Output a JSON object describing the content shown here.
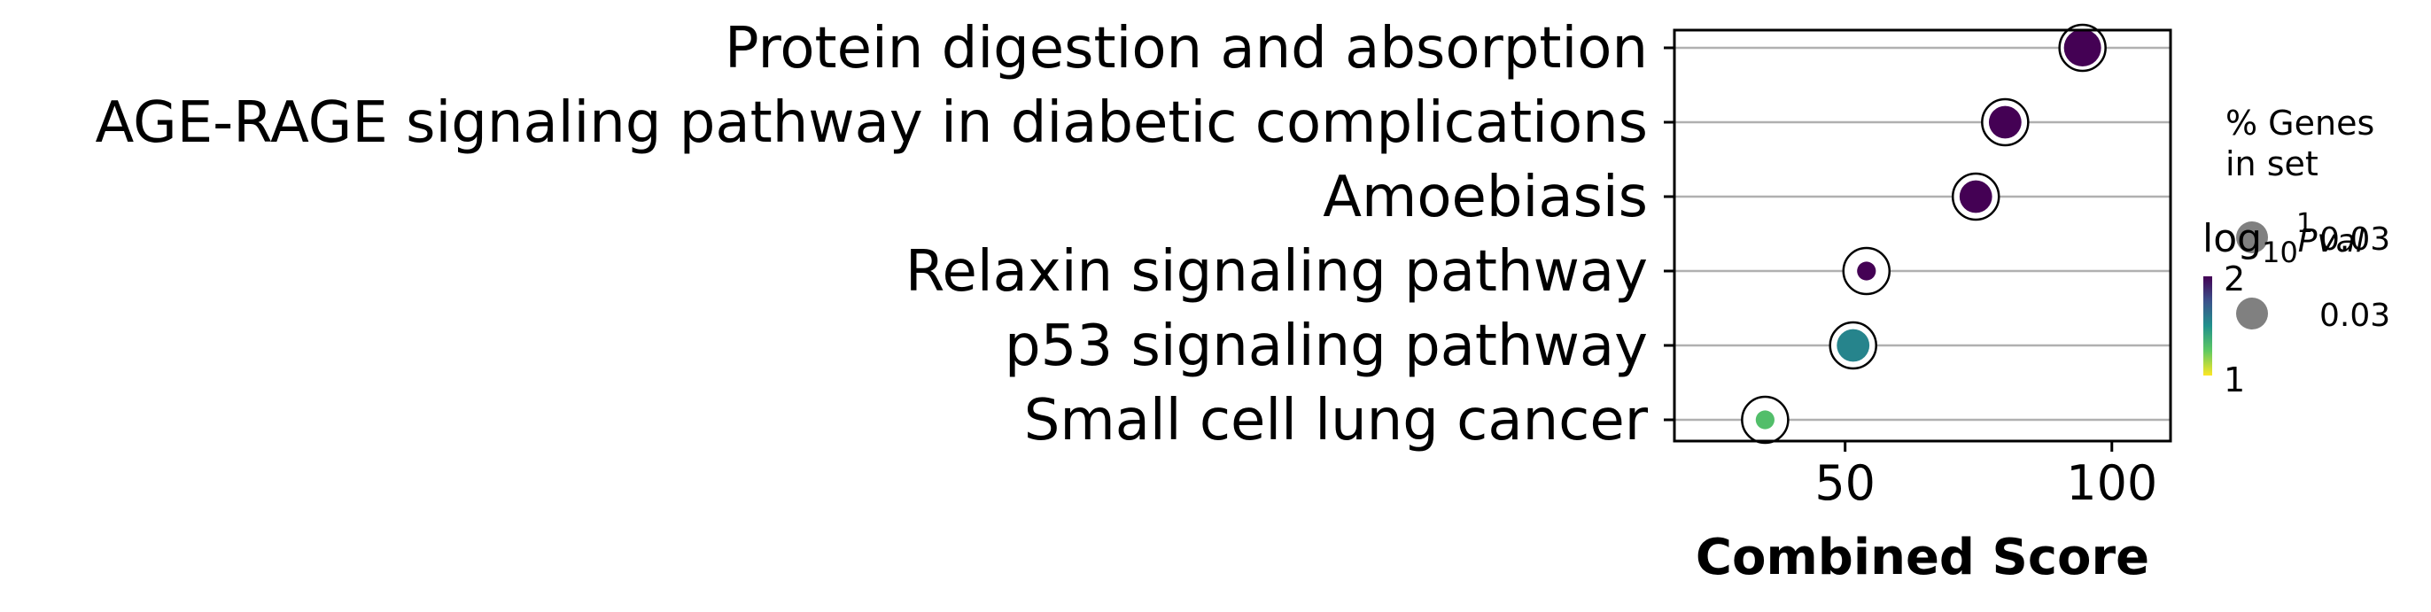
{
  "chart_data": {
    "type": "scatter",
    "xlabel": "Combined Score",
    "xlim": [
      18,
      111
    ],
    "xticks": [
      50,
      100
    ],
    "categories": [
      "Protein digestion and absorption",
      "AGE-RAGE signaling pathway in diabetic complications",
      "Amoebiasis",
      "Relaxin signaling pathway",
      "p53 signaling pathway",
      "Small cell lung cancer"
    ],
    "points": [
      {
        "term": "Protein digestion and absorption",
        "score": 94.5,
        "neg_log10_pval": 2.0,
        "pct_genes": 0.032
      },
      {
        "term": "AGE-RAGE signaling pathway in diabetic complications",
        "score": 80.0,
        "neg_log10_pval": 2.0,
        "pct_genes": 0.031
      },
      {
        "term": "Amoebiasis",
        "score": 74.5,
        "neg_log10_pval": 2.0,
        "pct_genes": 0.031
      },
      {
        "term": "Relaxin signaling pathway",
        "score": 54.0,
        "neg_log10_pval": 2.0,
        "pct_genes": 0.028
      },
      {
        "term": "p53 signaling pathway",
        "score": 51.5,
        "neg_log10_pval": 1.55,
        "pct_genes": 0.031
      },
      {
        "term": "Small cell lung cancer",
        "score": 35.0,
        "neg_log10_pval": 1.3,
        "pct_genes": 0.028
      }
    ],
    "colorbar": {
      "label_base": "log",
      "label_sub": "10",
      "label_var": "Pval",
      "label_sup": "1",
      "ticks": [
        "2",
        "1"
      ],
      "range": [
        1,
        2
      ],
      "colormap": "viridis_r"
    },
    "size_legend": {
      "title_line1": "% Genes",
      "title_line2": "in set",
      "entries": [
        "0.03",
        "0.03"
      ]
    },
    "grid": "horizontal",
    "colors": {
      "grid": "#b0b0b0",
      "legend_marker": "#808080",
      "stops": [
        "#440154",
        "#3b528b",
        "#21918c",
        "#5ec962",
        "#fde725"
      ]
    }
  }
}
